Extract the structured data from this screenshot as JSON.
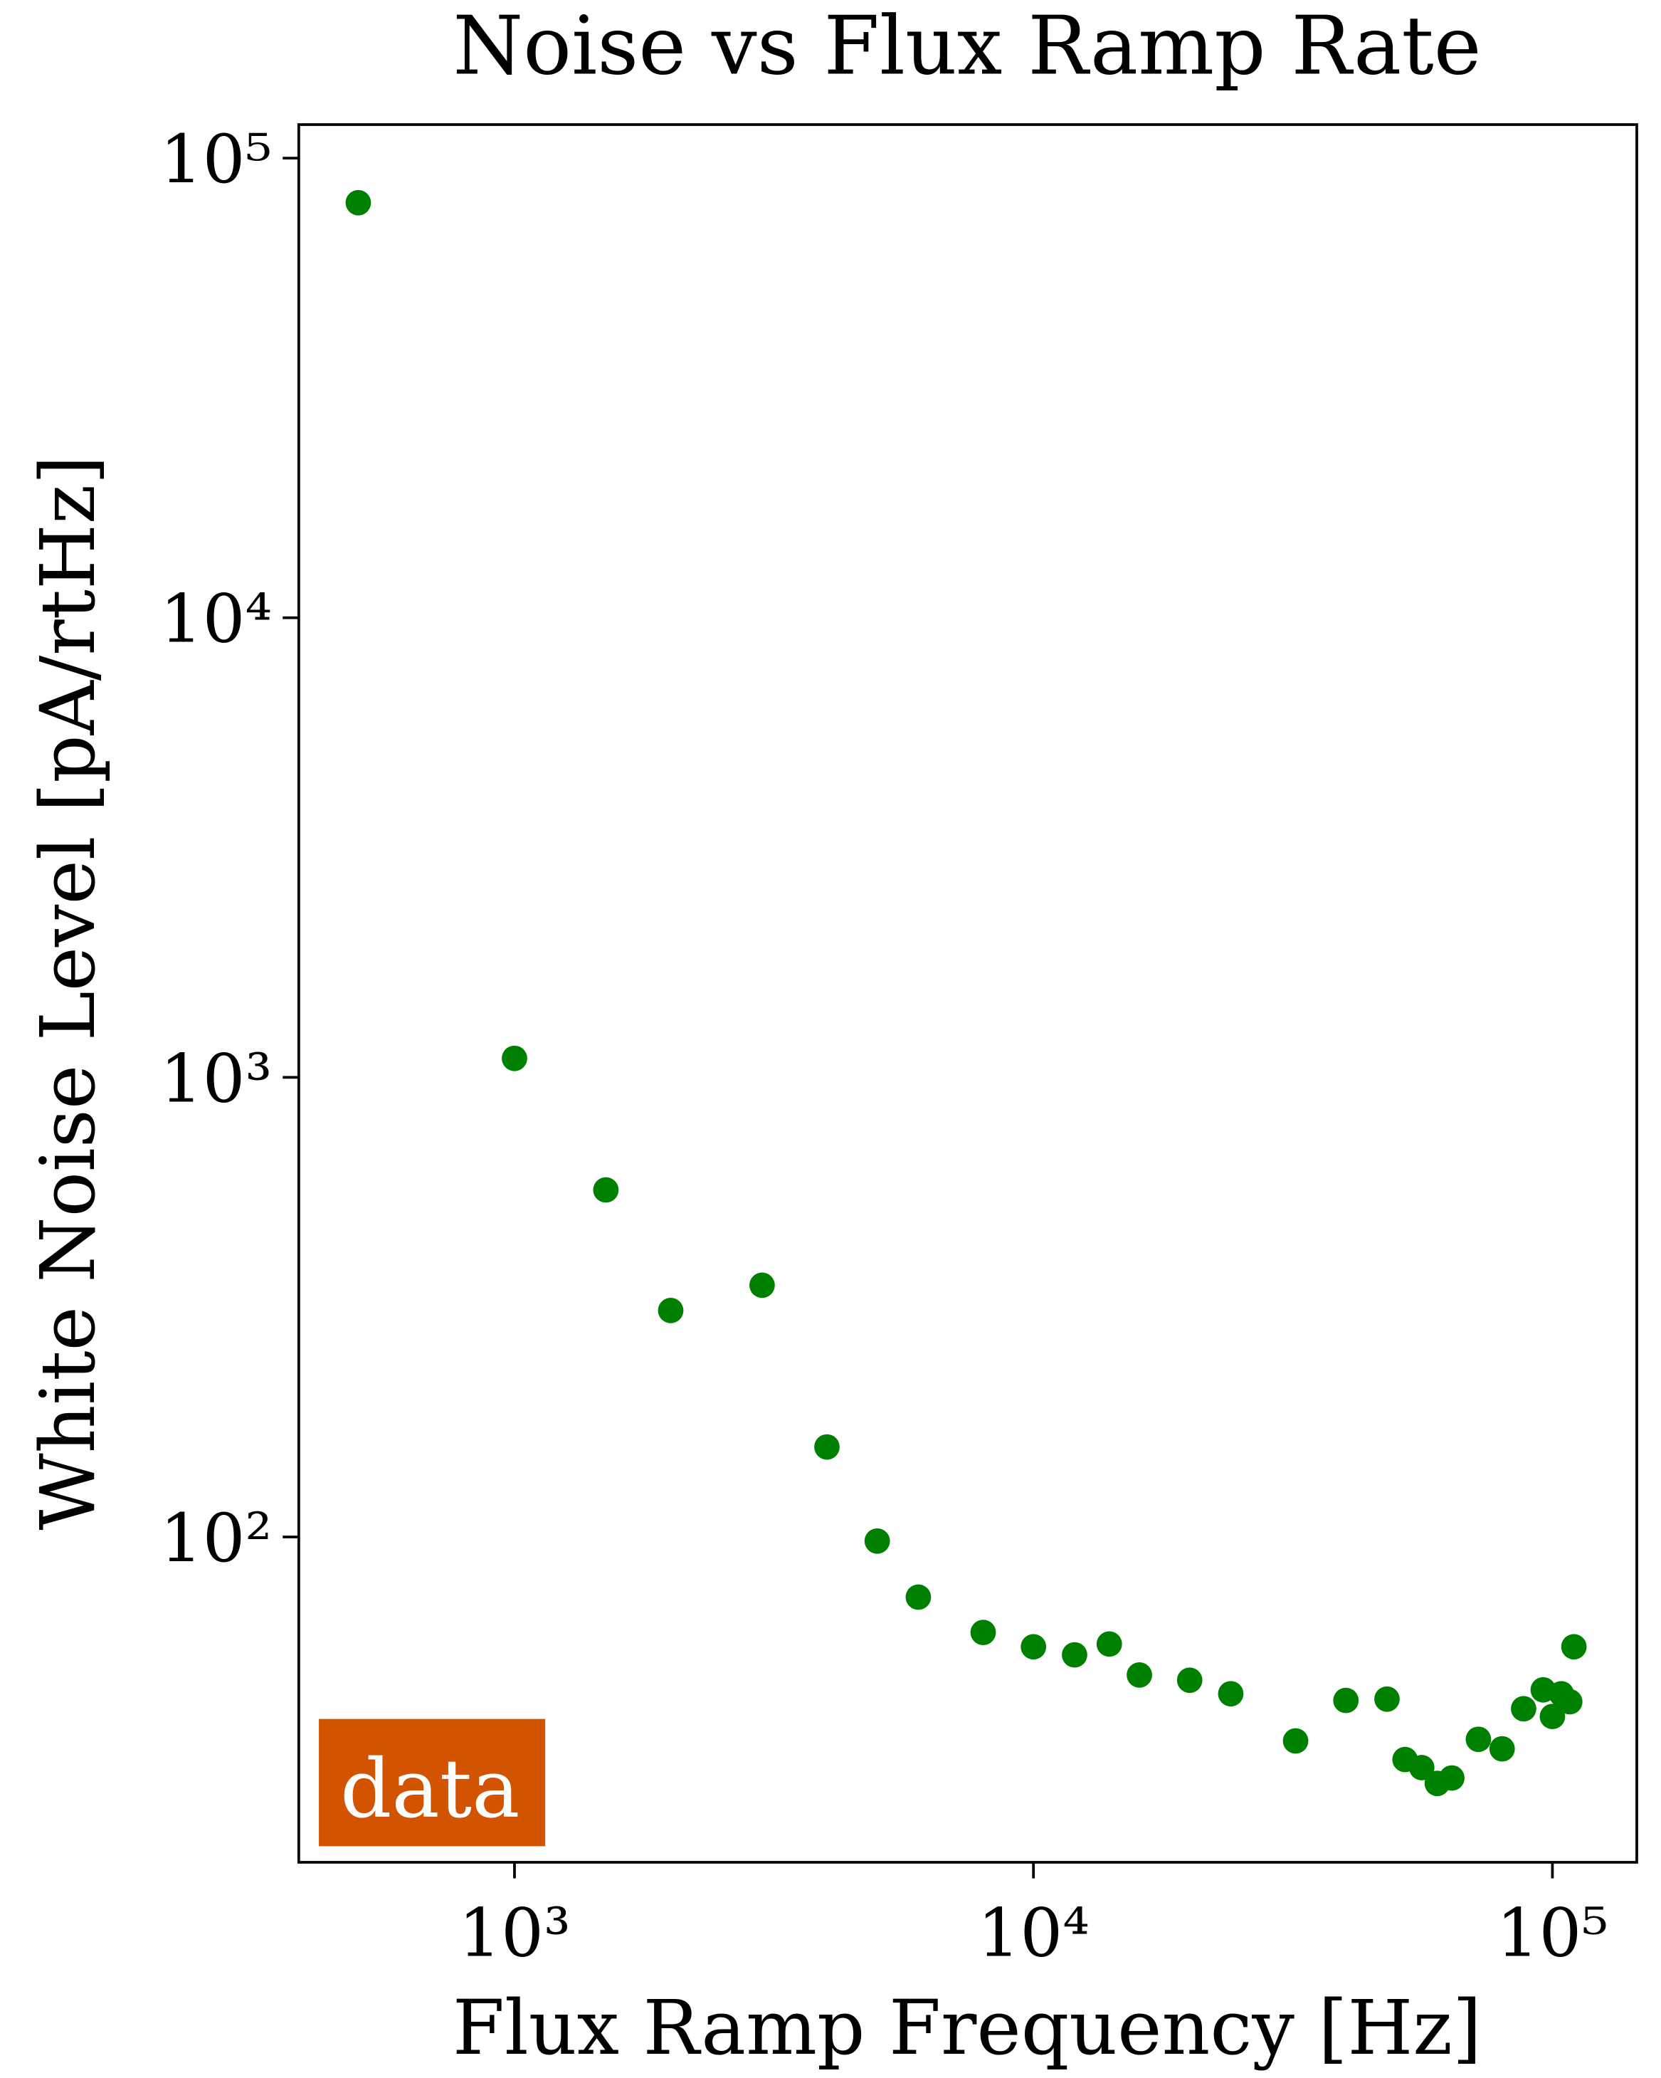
{
  "chart_data": {
    "type": "scatter",
    "title": "Noise vs Flux Ramp Rate",
    "x_label": "Flux Ramp Frequency [Hz]",
    "y_label": "White Noise Level [pA/rtHz]",
    "annotation": "data",
    "xscale": "log",
    "yscale": "log",
    "xlim": [
      384,
      145400
    ],
    "ylim": [
      19.6,
      118300
    ],
    "xticks": [
      {
        "value": 1000,
        "label": "10³"
      },
      {
        "value": 10000,
        "label": "10⁴"
      },
      {
        "value": 100000,
        "label": "10⁵"
      }
    ],
    "yticks": [
      {
        "value": 100,
        "label": "10²"
      },
      {
        "value": 1000,
        "label": "10³"
      },
      {
        "value": 10000,
        "label": "10⁴"
      },
      {
        "value": 100000,
        "label": "10⁵"
      }
    ],
    "series": [
      {
        "color": "#008000",
        "x": [
          500,
          1000,
          1500,
          2000,
          3000,
          4000,
          5000,
          6000,
          8000,
          10000,
          12000,
          14000,
          16000,
          20000,
          24000,
          32000,
          40000,
          48000,
          52000,
          56000,
          60000,
          64000,
          72000,
          80000,
          88000,
          96000,
          100000,
          104000,
          108000,
          110000
        ],
        "values": [
          80000,
          1100,
          569,
          311,
          353,
          157,
          98,
          74,
          62,
          57.7,
          55.4,
          58.5,
          50.1,
          48.8,
          45.6,
          36.0,
          44.1,
          44.4,
          32.8,
          31.5,
          29.1,
          29.9,
          36.3,
          34.6,
          42.3,
          46.5,
          40.7,
          45.6,
          43.8,
          57.7
        ]
      }
    ]
  }
}
